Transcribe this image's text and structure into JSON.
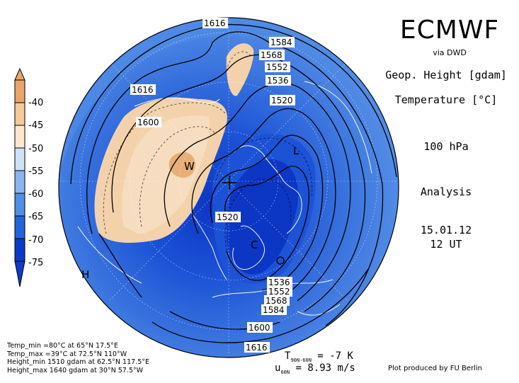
{
  "header": {
    "title": "ECMWF",
    "source": "via DWD",
    "param1": "Geop. Height [gdam]",
    "param2": "Temperature [°C]",
    "level": "100 hPa",
    "run_type": "Analysis",
    "date": "15.01.12",
    "time": "12 UT"
  },
  "colorbar": {
    "labels": [
      "-40",
      "-45",
      "-50",
      "-55",
      "-60",
      "-65",
      "-70",
      "-75"
    ],
    "colors": [
      "#e8a66c",
      "#f3c99d",
      "#fbe8cf",
      "#cfe1f7",
      "#8bb5ee",
      "#4f8fe6",
      "#2164dd",
      "#0a3cc9"
    ]
  },
  "map": {
    "contour_labels": [
      "1616",
      "1584",
      "1568",
      "1552",
      "1536",
      "1520",
      "1616",
      "1600",
      "1520",
      "1536",
      "1552",
      "1568",
      "1584",
      "1600",
      "1616"
    ],
    "markers": {
      "warm": "W",
      "low": "L",
      "cold": "C",
      "high": "H"
    },
    "colors": {
      "ocean_edge": "#3d77df",
      "mid_blue": "#5b93e8",
      "deep_blue": "#1c52d6",
      "core_blue": "#0c36c4",
      "warm_tan": "#f3d2ab",
      "warm_core": "#e8ae75",
      "contour": "#000000",
      "coast": "#ffffff"
    }
  },
  "stats": {
    "temp_min": "Temp_min  =80°C at 65°N 17.5°E",
    "temp_max": "Temp_max =39°C at 72.5°N 110°W",
    "height_min": "Height_min 1510 gdam at 62.5°N 117.5°E",
    "height_max": "Height_max 1640 gdam at 30°N 57.5°W"
  },
  "metrics": {
    "t_symbol": "T",
    "t_sub": "90N-60N",
    "t_value": "= -7 K",
    "u_symbol": "u",
    "u_sub": "60N",
    "u_value": "= 8.93 m/s"
  },
  "credit": "Plot produced by FU Berlin"
}
